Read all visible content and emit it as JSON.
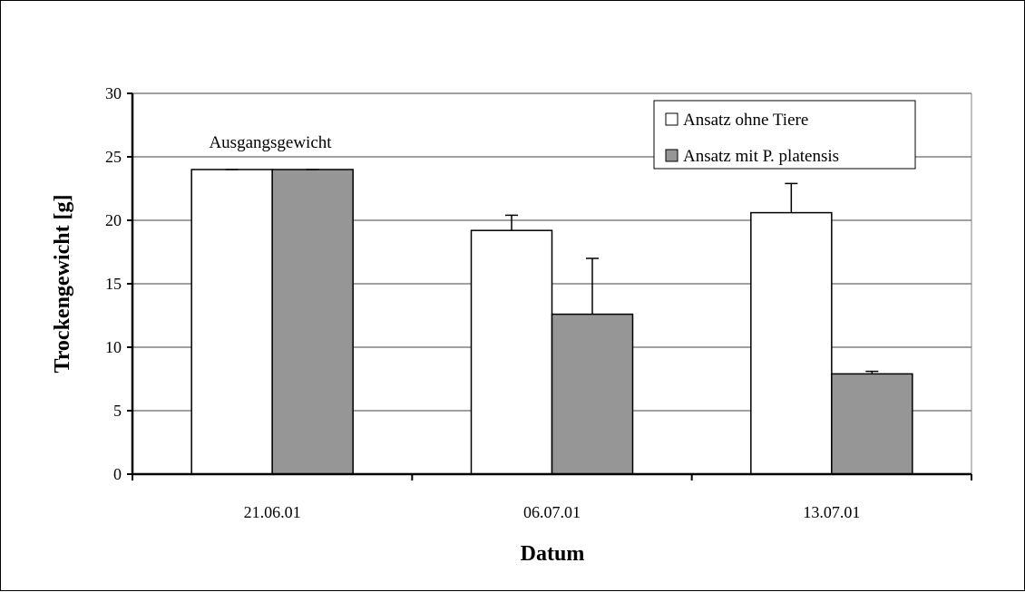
{
  "chart_data": {
    "type": "bar",
    "title": "",
    "xlabel": "Datum",
    "ylabel": "Trockengewicht [g]",
    "ylim": [
      0,
      30
    ],
    "yticks": [
      "0",
      "5",
      "10",
      "15",
      "20",
      "25",
      "30"
    ],
    "categories": [
      "21.06.01",
      "06.07.01",
      "13.07.01"
    ],
    "series": [
      {
        "name": "Ansatz ohne Tiere",
        "color": "#ffffff",
        "values": [
          24.0,
          19.2,
          20.6
        ],
        "error": [
          0.0,
          1.2,
          2.3
        ]
      },
      {
        "name": "Ansatz mit P. platensis",
        "color": "#969696",
        "values": [
          24.0,
          12.6,
          7.9
        ],
        "error": [
          0.0,
          4.4,
          0.2
        ]
      }
    ],
    "annotation": "Ausgangsgewicht",
    "grid": true,
    "legend_position": "top-right"
  }
}
